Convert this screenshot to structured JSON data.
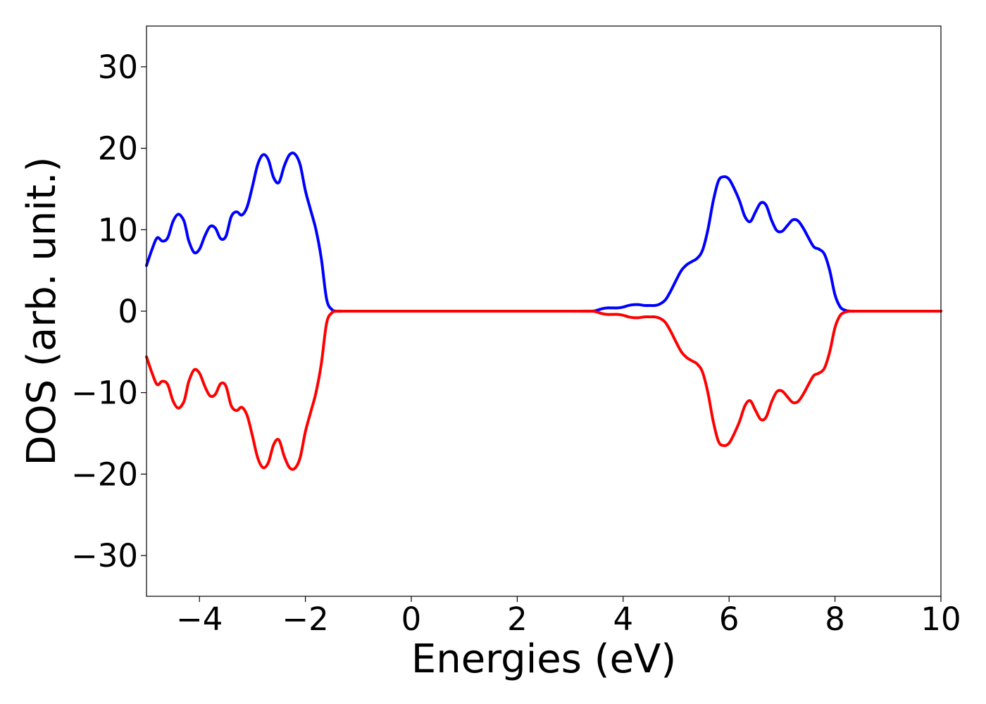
{
  "chart_data": {
    "type": "line",
    "title": "",
    "xlabel": "Energies (eV)",
    "ylabel": "DOS (arb. unit.)",
    "xlim": [
      -5,
      10
    ],
    "ylim": [
      -35,
      35
    ],
    "xticks": [
      -4,
      -2,
      0,
      2,
      4,
      6,
      8,
      10
    ],
    "yticks": [
      30,
      20,
      10,
      0,
      -10,
      -20,
      -30
    ],
    "xtick_labels": [
      "−4",
      "−2",
      "0",
      "2",
      "4",
      "6",
      "8",
      "10"
    ],
    "ytick_labels": [
      "30",
      "20",
      "10",
      "0",
      "−10",
      "−20",
      "−30"
    ],
    "grid": false,
    "legend": "none",
    "series": [
      {
        "color": "#0000ff",
        "x": [
          -5.0,
          -4.9,
          -4.8,
          -4.7,
          -4.6,
          -4.5,
          -4.4,
          -4.3,
          -4.25,
          -4.2,
          -4.1,
          -4.0,
          -3.9,
          -3.8,
          -3.7,
          -3.6,
          -3.5,
          -3.4,
          -3.3,
          -3.2,
          -3.1,
          -3.0,
          -2.9,
          -2.8,
          -2.7,
          -2.6,
          -2.5,
          -2.4,
          -2.3,
          -2.2,
          -2.1,
          -2.0,
          -1.9,
          -1.8,
          -1.7,
          -1.6,
          -1.5,
          -1.4,
          -1.3,
          -1.2,
          -1.1,
          -1.0,
          -0.9,
          -0.8,
          -0.7,
          -0.6,
          -0.5,
          0.0,
          3.0,
          3.4,
          3.5,
          3.6,
          3.7,
          3.8,
          3.9,
          4.0,
          4.1,
          4.2,
          4.3,
          4.4,
          4.5,
          4.6,
          4.7,
          4.8,
          4.9,
          5.0,
          5.1,
          5.2,
          5.3,
          5.4,
          5.5,
          5.6,
          5.7,
          5.8,
          5.9,
          6.0,
          6.1,
          6.2,
          6.3,
          6.4,
          6.5,
          6.6,
          6.7,
          6.8,
          6.9,
          7.0,
          7.1,
          7.2,
          7.3,
          7.4,
          7.5,
          7.6,
          7.7,
          7.8,
          7.9,
          8.0,
          8.1,
          8.2,
          8.3,
          8.4,
          8.5,
          8.6,
          8.7,
          8.8,
          8.9,
          9.0,
          9.1,
          9.5,
          10.0
        ],
        "y": [
          5.6,
          7.5,
          9.0,
          8.6,
          9.0,
          11.0,
          11.9,
          11.2,
          10.0,
          8.6,
          7.2,
          7.6,
          9.2,
          10.4,
          10.2,
          8.9,
          9.2,
          11.6,
          12.2,
          11.8,
          12.8,
          15.3,
          18.0,
          19.2,
          18.6,
          16.4,
          15.8,
          17.8,
          19.2,
          19.3,
          18.0,
          14.8,
          12.4,
          10.0,
          6.5,
          1.5,
          0.2,
          0.0,
          0.0,
          0.0,
          0.0,
          0.0,
          0.0,
          0.0,
          0.0,
          0.0,
          0.0,
          0.0,
          0.0,
          0.0,
          0.1,
          0.3,
          0.4,
          0.4,
          0.4,
          0.5,
          0.7,
          0.8,
          0.8,
          0.7,
          0.7,
          0.7,
          0.9,
          1.4,
          2.5,
          3.8,
          5.0,
          5.7,
          6.1,
          6.5,
          7.5,
          10.0,
          13.5,
          16.0,
          16.5,
          16.2,
          15.0,
          13.5,
          11.6,
          11.0,
          12.2,
          13.3,
          13.0,
          11.2,
          9.9,
          9.8,
          10.5,
          11.2,
          11.1,
          10.2,
          9.0,
          7.9,
          7.6,
          7.0,
          5.0,
          2.0,
          0.5,
          0.1,
          0.0,
          0.0,
          0.0,
          0.0,
          0.0,
          0.0,
          0.0,
          0.0,
          0.0,
          0.0,
          0.0
        ]
      },
      {
        "color": "#ff0000",
        "x": [
          -5.0,
          -4.9,
          -4.8,
          -4.7,
          -4.6,
          -4.5,
          -4.4,
          -4.3,
          -4.25,
          -4.2,
          -4.1,
          -4.0,
          -3.9,
          -3.8,
          -3.7,
          -3.6,
          -3.5,
          -3.4,
          -3.3,
          -3.2,
          -3.1,
          -3.0,
          -2.9,
          -2.8,
          -2.7,
          -2.6,
          -2.5,
          -2.4,
          -2.3,
          -2.2,
          -2.1,
          -2.0,
          -1.9,
          -1.8,
          -1.7,
          -1.6,
          -1.5,
          -1.4,
          -1.3,
          -1.2,
          -1.1,
          -1.0,
          -0.9,
          -0.8,
          -0.7,
          -0.6,
          -0.5,
          0.0,
          3.0,
          3.4,
          3.5,
          3.6,
          3.7,
          3.8,
          3.9,
          4.0,
          4.1,
          4.2,
          4.3,
          4.4,
          4.5,
          4.6,
          4.7,
          4.8,
          4.9,
          5.0,
          5.1,
          5.2,
          5.3,
          5.4,
          5.5,
          5.6,
          5.7,
          5.8,
          5.9,
          6.0,
          6.1,
          6.2,
          6.3,
          6.4,
          6.5,
          6.6,
          6.7,
          6.8,
          6.9,
          7.0,
          7.1,
          7.2,
          7.3,
          7.4,
          7.5,
          7.6,
          7.7,
          7.8,
          7.9,
          8.0,
          8.1,
          8.2,
          8.3,
          8.4,
          8.5,
          8.6,
          8.7,
          8.8,
          8.9,
          9.0,
          9.1,
          9.5,
          10.0
        ],
        "y": [
          -5.6,
          -7.5,
          -9.0,
          -8.6,
          -9.0,
          -11.0,
          -11.9,
          -11.2,
          -10.0,
          -8.6,
          -7.2,
          -7.6,
          -9.2,
          -10.4,
          -10.2,
          -8.9,
          -9.2,
          -11.6,
          -12.2,
          -11.8,
          -12.8,
          -15.3,
          -18.0,
          -19.2,
          -18.6,
          -16.4,
          -15.8,
          -17.8,
          -19.2,
          -19.3,
          -18.0,
          -14.8,
          -12.4,
          -10.0,
          -6.5,
          -1.5,
          -0.2,
          0.0,
          0.0,
          0.0,
          0.0,
          0.0,
          0.0,
          0.0,
          0.0,
          0.0,
          0.0,
          0.0,
          0.0,
          0.0,
          -0.1,
          -0.3,
          -0.4,
          -0.4,
          -0.4,
          -0.5,
          -0.7,
          -0.8,
          -0.8,
          -0.7,
          -0.7,
          -0.7,
          -0.9,
          -1.4,
          -2.5,
          -3.8,
          -5.0,
          -5.7,
          -6.1,
          -6.5,
          -7.5,
          -10.0,
          -13.5,
          -16.0,
          -16.5,
          -16.2,
          -15.0,
          -13.5,
          -11.6,
          -11.0,
          -12.2,
          -13.3,
          -13.0,
          -11.2,
          -9.9,
          -9.8,
          -10.5,
          -11.2,
          -11.1,
          -10.2,
          -9.0,
          -7.9,
          -7.6,
          -7.0,
          -5.0,
          -2.0,
          -0.5,
          -0.1,
          0.0,
          0.0,
          0.0,
          0.0,
          0.0,
          0.0,
          0.0,
          0.0,
          0.0,
          0.0,
          0.0
        ]
      }
    ]
  }
}
